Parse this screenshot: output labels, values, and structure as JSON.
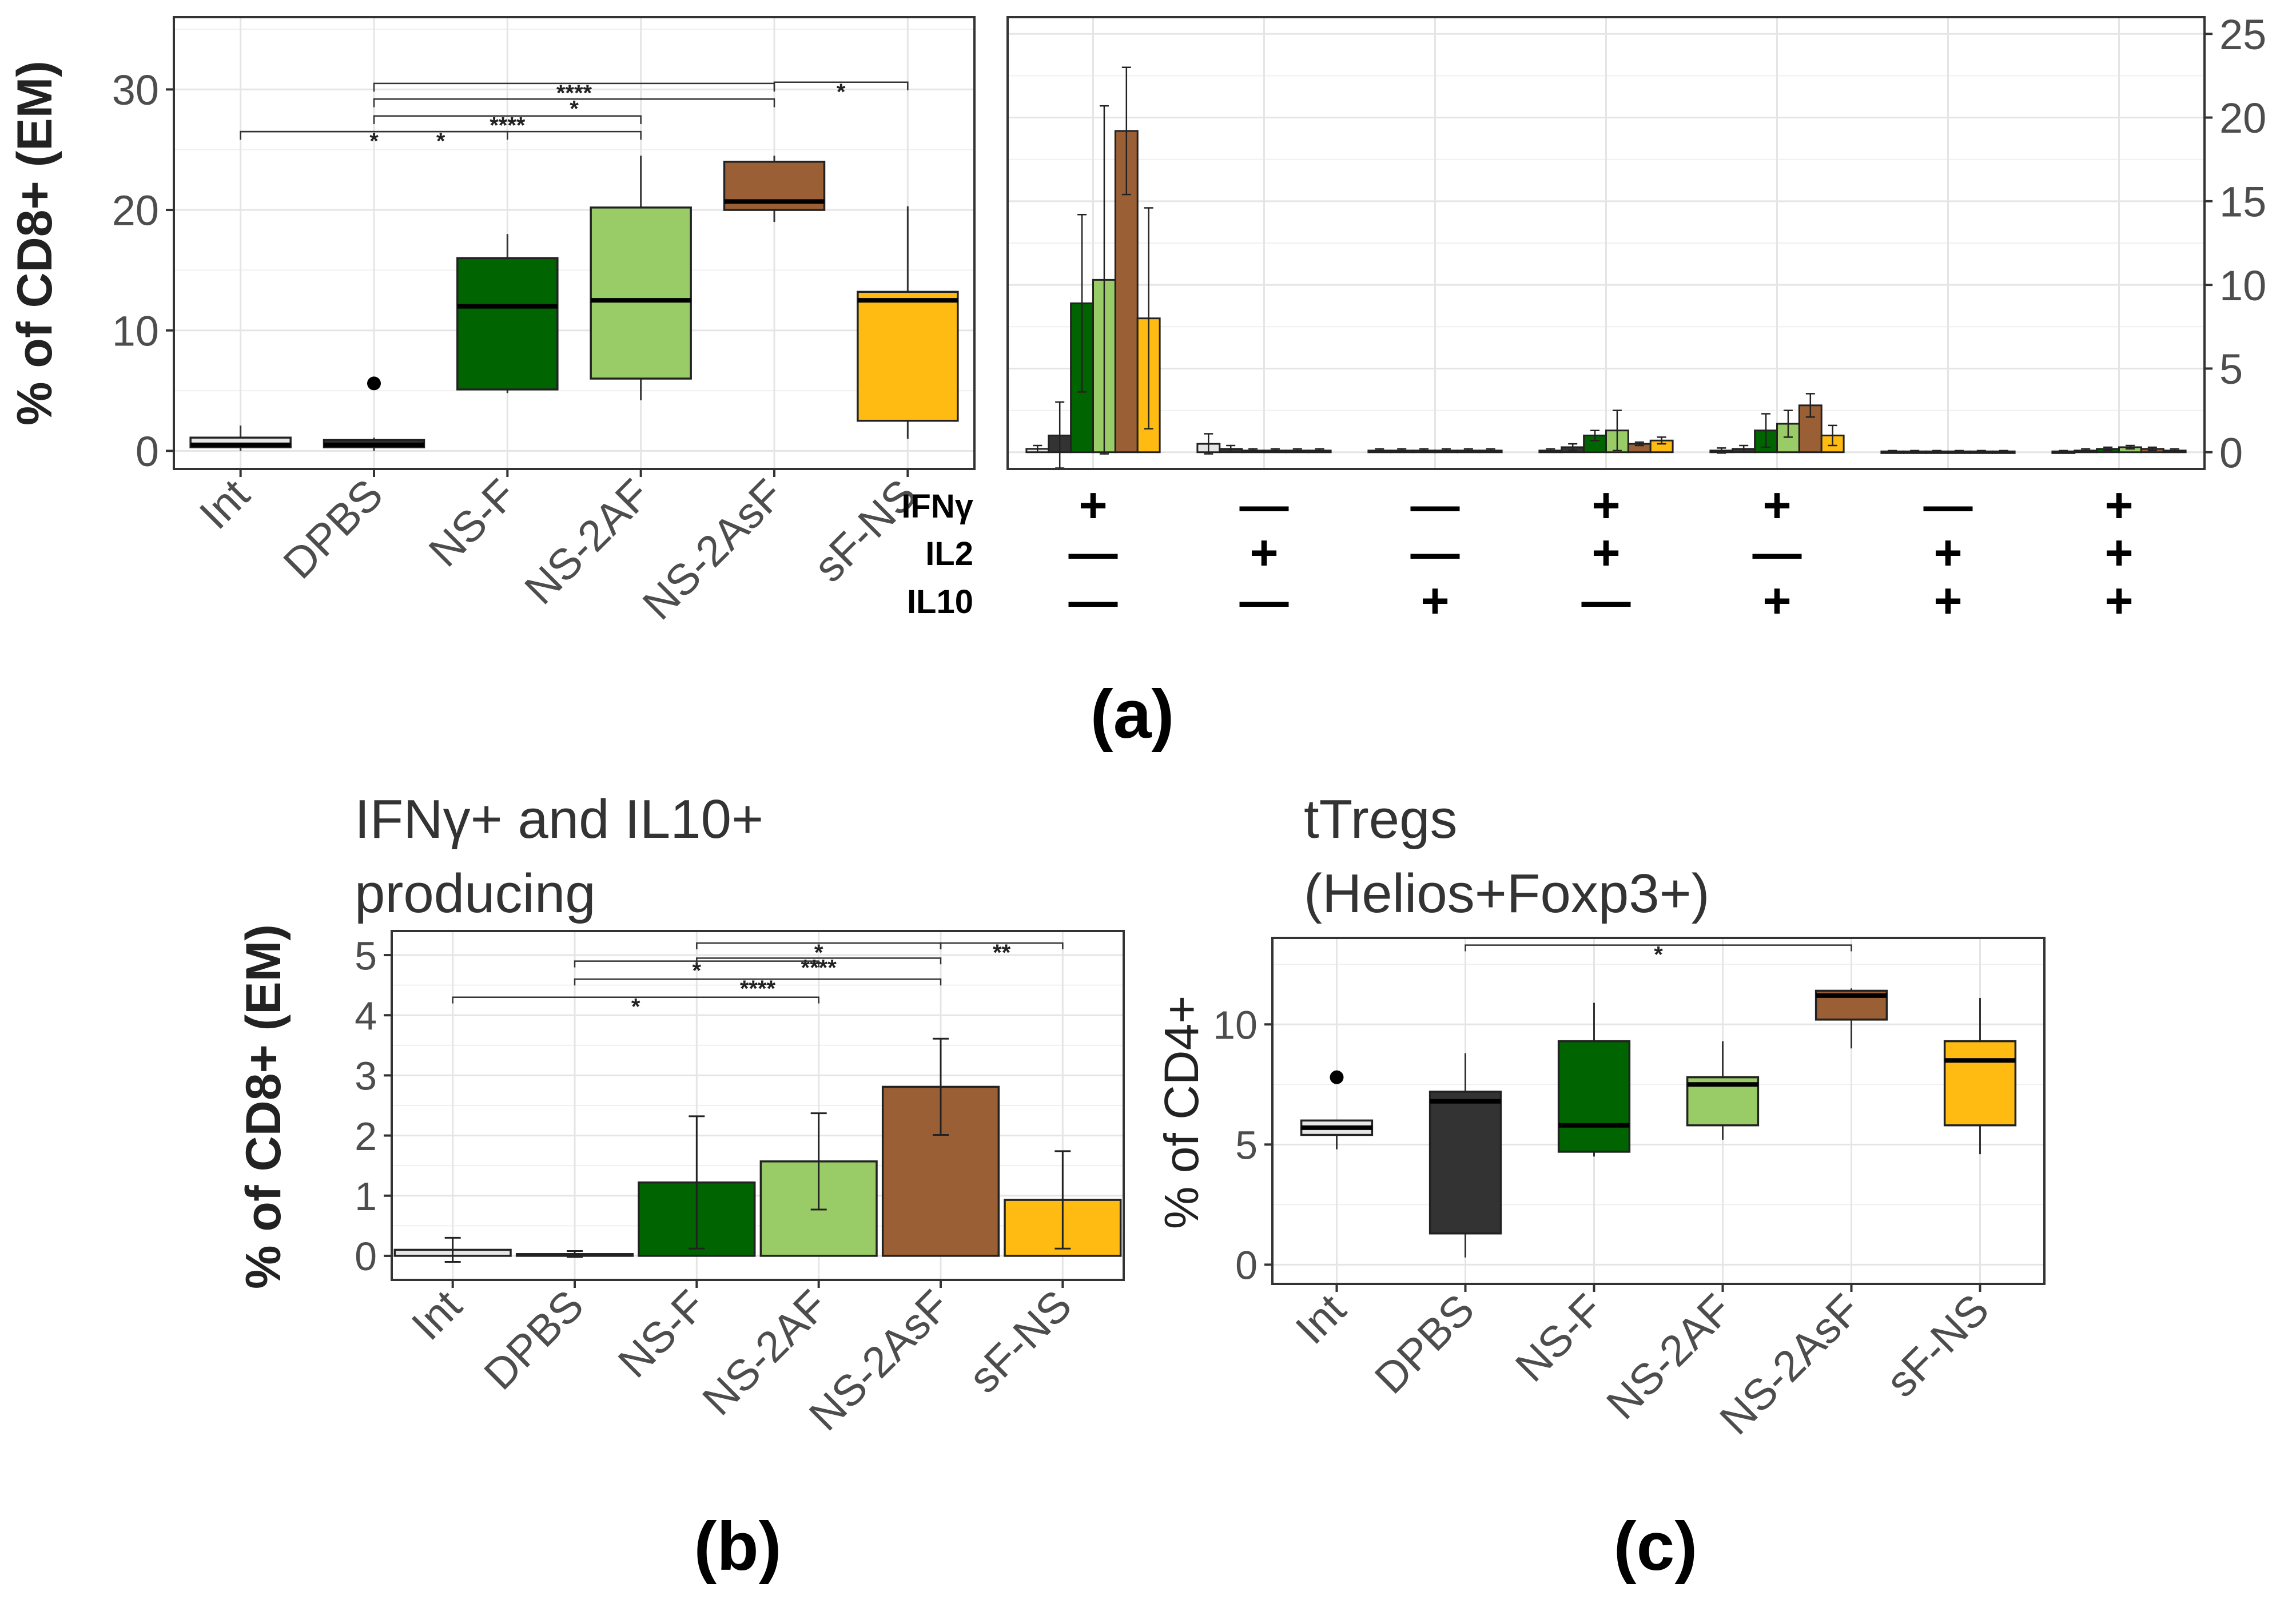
{
  "colors": {
    "Int": "#e6e6e6",
    "DPBS": "#333333",
    "NS-F": "#006400",
    "NS-2AF": "#99cc66",
    "NS-2AsF": "#9a5f34",
    "sF-NS": "#ffbb11",
    "grid": "#e5e5e5",
    "frame": "#333333",
    "text": "#4d4d4d",
    "label": "#222222"
  },
  "chart_data": [
    {
      "id": "a-left",
      "type": "box",
      "ylabel": "% of CD8+ (EM)",
      "ylim": [
        -1.5,
        36
      ],
      "yticks": [
        0,
        10,
        20,
        30
      ],
      "categories": [
        "Int",
        "DPBS",
        "NS-F",
        "NS-2AF",
        "NS-2AsF",
        "sF-NS"
      ],
      "boxes": [
        {
          "name": "Int",
          "min": 0,
          "q1": 0.3,
          "median": 0.5,
          "q3": 1.1,
          "max": 2.1,
          "outliers": []
        },
        {
          "name": "DPBS",
          "min": 0,
          "q1": 0.3,
          "median": 0.5,
          "q3": 0.9,
          "max": 1.1,
          "outliers": [
            5.6
          ]
        },
        {
          "name": "NS-F",
          "min": 4.8,
          "q1": 5.1,
          "median": 12,
          "q3": 16,
          "max": 18,
          "outliers": []
        },
        {
          "name": "NS-2AF",
          "min": 4.2,
          "q1": 6,
          "median": 12.5,
          "q3": 20.2,
          "max": 24.5,
          "outliers": []
        },
        {
          "name": "NS-2AsF",
          "min": 19,
          "q1": 20,
          "median": 20.7,
          "q3": 24,
          "max": 24.5,
          "outliers": []
        },
        {
          "name": "sF-NS",
          "min": 1,
          "q1": 2.5,
          "median": 12.5,
          "q3": 13.2,
          "max": 20.3,
          "outliers": []
        }
      ],
      "significance": [
        {
          "from": "Int",
          "to": "NS-F",
          "label": "*",
          "y": 26.5
        },
        {
          "from": "Int",
          "to": "NS-2AF",
          "label": "*",
          "y": 26.5
        },
        {
          "from": "DPBS",
          "to": "NS-2AF",
          "label": "****",
          "y": 27.8
        },
        {
          "from": "DPBS",
          "to": "NS-2AsF",
          "label": "*",
          "y": 29.2
        },
        {
          "from": "DPBS",
          "to": "NS-2AsF",
          "label": "****",
          "y": 30.5
        },
        {
          "from": "NS-2AsF",
          "to": "sF-NS",
          "label": "*",
          "y": 30.6
        }
      ]
    },
    {
      "id": "a-right",
      "type": "bar",
      "ylim": [
        -1,
        26
      ],
      "yticks": [
        0,
        5,
        10,
        15,
        20,
        25
      ],
      "axis_position": "right",
      "groups": [
        "IFNγ+IL2−IL10−",
        "IFNγ−IL2+IL10−",
        "IFNγ−IL2−IL10+",
        "IFNγ+IL2+IL10−",
        "IFNγ+IL2−IL10+",
        "IFNγ−IL2+IL10+",
        "IFNγ+IL2+IL10+"
      ],
      "series": [
        {
          "name": "Int",
          "values": [
            0.2,
            0.5,
            0.1,
            0.1,
            0.1,
            0.05,
            0.05
          ],
          "errors": [
            0.2,
            0.6,
            0.1,
            0.1,
            0.15,
            0.05,
            0.05
          ]
        },
        {
          "name": "DPBS",
          "values": [
            1.0,
            0.2,
            0.1,
            0.3,
            0.2,
            0.05,
            0.1
          ],
          "errors": [
            2.0,
            0.2,
            0.1,
            0.2,
            0.2,
            0.05,
            0.1
          ]
        },
        {
          "name": "NS-F",
          "values": [
            8.9,
            0.1,
            0.1,
            1.0,
            1.3,
            0.05,
            0.2
          ],
          "errors": [
            5.3,
            0.1,
            0.1,
            0.3,
            1.0,
            0.05,
            0.1
          ]
        },
        {
          "name": "NS-2AF",
          "values": [
            10.3,
            0.1,
            0.1,
            1.3,
            1.7,
            0.05,
            0.3
          ],
          "errors": [
            10.4,
            0.1,
            0.1,
            1.2,
            0.8,
            0.05,
            0.1
          ]
        },
        {
          "name": "NS-2AsF",
          "values": [
            19.2,
            0.1,
            0.1,
            0.5,
            2.8,
            0.05,
            0.2
          ],
          "errors": [
            3.8,
            0.1,
            0.1,
            0.1,
            0.7,
            0.05,
            0.1
          ]
        },
        {
          "name": "sF-NS",
          "values": [
            8.0,
            0.1,
            0.1,
            0.7,
            1.0,
            0.05,
            0.1
          ],
          "errors": [
            6.6,
            0.1,
            0.1,
            0.2,
            0.6,
            0.05,
            0.1
          ]
        }
      ],
      "matrix_rows": [
        {
          "label": "IFNγ",
          "signs": [
            "+",
            "—",
            "—",
            "+",
            "+",
            "—",
            "+"
          ]
        },
        {
          "label": "IL2",
          "signs": [
            "—",
            "+",
            "—",
            "+",
            "—",
            "+",
            "+"
          ]
        },
        {
          "label": "IL10",
          "signs": [
            "—",
            "—",
            "+",
            "—",
            "+",
            "+",
            "+"
          ]
        }
      ]
    },
    {
      "id": "b",
      "type": "bar",
      "title": [
        "IFNγ+ and IL10+",
        "producing"
      ],
      "ylabel": "% of CD8+ (EM)",
      "ylim": [
        -0.4,
        5.4
      ],
      "yticks": [
        0,
        1,
        2,
        3,
        4,
        5
      ],
      "categories": [
        "Int",
        "DPBS",
        "NS-F",
        "NS-2AF",
        "NS-2AsF",
        "sF-NS"
      ],
      "values": [
        0.1,
        0.03,
        1.22,
        1.57,
        2.81,
        0.93
      ],
      "errors": [
        0.2,
        0.05,
        1.1,
        0.8,
        0.8,
        0.81
      ],
      "significance": [
        {
          "from": "Int",
          "to": "NS-2AF",
          "label": "*",
          "y": 4.3
        },
        {
          "from": "DPBS",
          "to": "NS-2AsF",
          "label": "****",
          "y": 4.6
        },
        {
          "from": "DPBS",
          "to": "NS-2AF",
          "label": "*",
          "y": 4.9
        },
        {
          "from": "NS-F",
          "to": "NS-2AsF",
          "label": "****",
          "y": 4.95
        },
        {
          "from": "NS-F",
          "to": "NS-2AsF",
          "label": "*",
          "y": 5.2
        },
        {
          "from": "NS-2AsF",
          "to": "sF-NS",
          "label": "**",
          "y": 5.2
        }
      ]
    },
    {
      "id": "c",
      "type": "box",
      "title": [
        "tTregs",
        "(Helios+Foxp3+)"
      ],
      "ylabel": "% of CD4+",
      "ylim": [
        -0.8,
        13.6
      ],
      "yticks": [
        0,
        5,
        10
      ],
      "categories": [
        "Int",
        "DPBS",
        "NS-F",
        "NS-2AF",
        "NS-2AsF",
        "sF-NS"
      ],
      "boxes": [
        {
          "name": "Int",
          "min": 4.8,
          "q1": 5.4,
          "median": 5.7,
          "q3": 6.0,
          "max": 6.0,
          "outliers": [
            7.8
          ]
        },
        {
          "name": "DPBS",
          "min": 0.3,
          "q1": 1.3,
          "median": 6.8,
          "q3": 7.2,
          "max": 8.8,
          "outliers": []
        },
        {
          "name": "NS-F",
          "min": 4.5,
          "q1": 4.7,
          "median": 5.8,
          "q3": 9.3,
          "max": 10.9,
          "outliers": []
        },
        {
          "name": "NS-2AF",
          "min": 5.2,
          "q1": 5.8,
          "median": 7.5,
          "q3": 7.8,
          "max": 9.3,
          "outliers": []
        },
        {
          "name": "NS-2AsF",
          "min": 9.0,
          "q1": 10.2,
          "median": 11.2,
          "q3": 11.4,
          "max": 11.5,
          "outliers": []
        },
        {
          "name": "sF-NS",
          "min": 4.6,
          "q1": 5.8,
          "median": 8.5,
          "q3": 9.3,
          "max": 11.1,
          "outliers": []
        }
      ],
      "significance": [
        {
          "from": "DPBS",
          "to": "NS-2AsF",
          "label": "*",
          "y": 13.3
        }
      ]
    }
  ],
  "panel_labels": {
    "a": "(a)",
    "b": "(b)",
    "c": "(c)"
  }
}
